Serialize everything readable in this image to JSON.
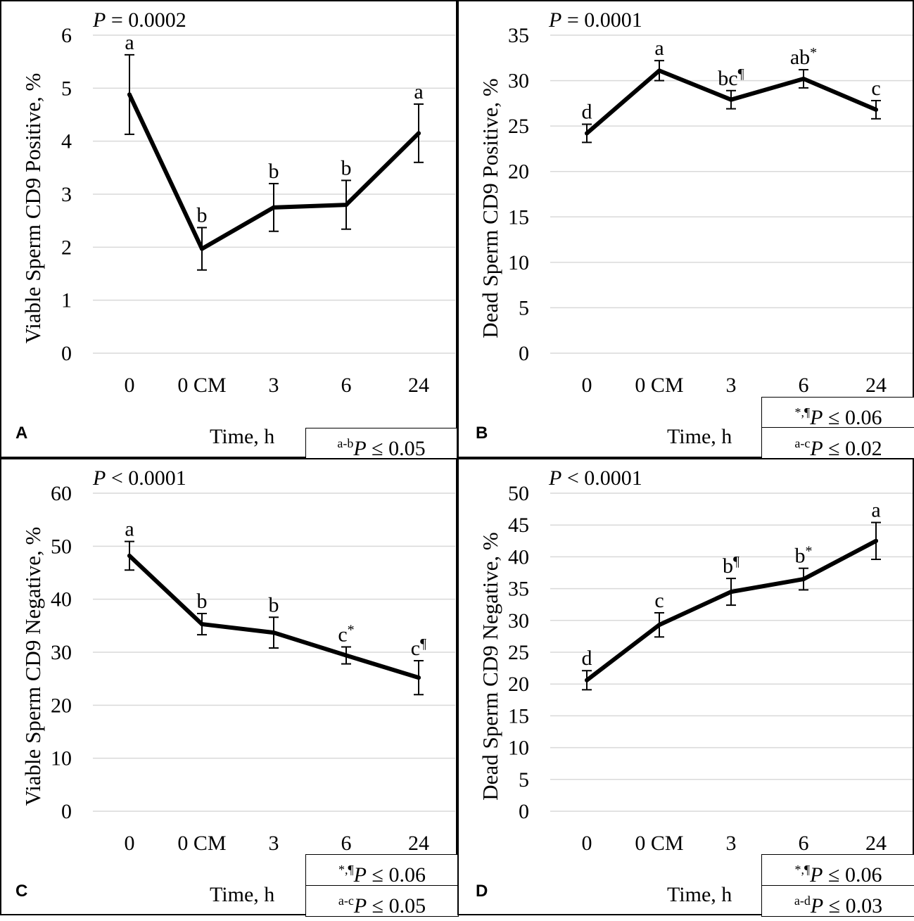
{
  "chart_data": [
    {
      "type": "line",
      "panel_letter": "A",
      "p_label": "P",
      "p_rest": " = 0.0002",
      "ylabel": "Viable Sperm CD9 Positive, %",
      "xlabel": "Time, h",
      "categories": [
        "0",
        "0 CM",
        "3",
        "6",
        "24"
      ],
      "values": [
        4.88,
        1.97,
        2.75,
        2.8,
        4.15
      ],
      "errors": [
        0.75,
        0.4,
        0.45,
        0.46,
        0.55
      ],
      "sig_letters": [
        "a",
        "b",
        "b",
        "b",
        "a"
      ],
      "sig_marks": [
        "",
        "",
        "",
        "",
        ""
      ],
      "ylim": [
        0,
        6
      ],
      "yticks": [
        0,
        1,
        2,
        3,
        4,
        5,
        6
      ],
      "grid": true,
      "legend_boxes": [
        {
          "sup": "a-b",
          "p": "P",
          "text": " ≤ 0.05"
        }
      ]
    },
    {
      "type": "line",
      "panel_letter": "B",
      "p_label": "P",
      "p_rest": " = 0.0001",
      "ylabel": "Dead Sperm CD9 Positive, %",
      "xlabel": "Time, h",
      "categories": [
        "0",
        "0 CM",
        "3",
        "6",
        "24"
      ],
      "values": [
        24.2,
        31.1,
        27.9,
        30.2,
        26.8
      ],
      "errors": [
        1.0,
        1.1,
        1.0,
        1.0,
        1.0
      ],
      "sig_letters": [
        "d",
        "a",
        "bc",
        "ab",
        "c"
      ],
      "sig_marks": [
        "",
        "",
        "¶",
        "*",
        ""
      ],
      "ylim": [
        0,
        35
      ],
      "yticks": [
        0,
        5,
        10,
        15,
        20,
        25,
        30,
        35
      ],
      "grid": true,
      "legend_boxes": [
        {
          "sup": "*,¶",
          "p": "P",
          "text": " ≤ 0.06"
        },
        {
          "sup": "a-c",
          "p": "P",
          "text": " ≤ 0.02"
        }
      ]
    },
    {
      "type": "line",
      "panel_letter": "C",
      "p_label": "P",
      "p_rest": " < 0.0001",
      "ylabel": "Viable Sperm CD9 Negative, %",
      "xlabel": "Time, h",
      "categories": [
        "0",
        "0 CM",
        "3",
        "6",
        "24"
      ],
      "values": [
        48.2,
        35.3,
        33.7,
        29.4,
        25.2
      ],
      "errors": [
        2.7,
        2.0,
        2.9,
        1.6,
        3.2
      ],
      "sig_letters": [
        "a",
        "b",
        "b",
        "c",
        "c"
      ],
      "sig_marks": [
        "",
        "",
        "",
        "*",
        "¶"
      ],
      "ylim": [
        0,
        60
      ],
      "yticks": [
        0,
        10,
        20,
        30,
        40,
        50,
        60
      ],
      "grid": true,
      "legend_boxes": [
        {
          "sup": "*,¶",
          "p": "P",
          "text": " ≤ 0.06"
        },
        {
          "sup": "a-c",
          "p": "P",
          "text": " ≤ 0.05"
        }
      ]
    },
    {
      "type": "line",
      "panel_letter": "D",
      "p_label": "P",
      "p_rest": " < 0.0001",
      "ylabel": "Dead Sperm CD9 Negative, %",
      "xlabel": "Time, h",
      "categories": [
        "0",
        "0 CM",
        "3",
        "6",
        "24"
      ],
      "values": [
        20.6,
        29.3,
        34.5,
        36.5,
        42.5
      ],
      "errors": [
        1.5,
        1.9,
        2.1,
        1.7,
        2.9
      ],
      "sig_letters": [
        "d",
        "c",
        "b",
        "b",
        "a"
      ],
      "sig_marks": [
        "",
        "",
        "¶",
        "*",
        ""
      ],
      "ylim": [
        0,
        50
      ],
      "yticks": [
        0,
        5,
        10,
        15,
        20,
        25,
        30,
        35,
        40,
        45,
        50
      ],
      "grid": true,
      "legend_boxes": [
        {
          "sup": "*,¶",
          "p": "P",
          "text": " ≤ 0.06"
        },
        {
          "sup": "a-d",
          "p": "P",
          "text": " ≤ 0.03"
        }
      ]
    }
  ]
}
